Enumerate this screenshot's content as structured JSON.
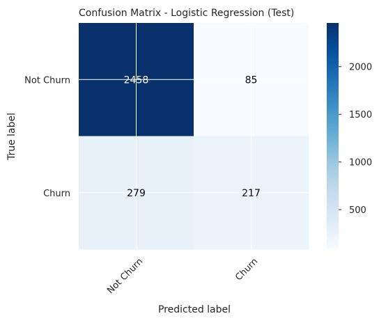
{
  "chart_data": {
    "type": "heatmap",
    "title": "Confusion Matrix - Logistic Regression (Test)",
    "xlabel": "Predicted label",
    "ylabel": "True label",
    "x_categories": [
      "Not Churn",
      "Churn"
    ],
    "y_categories": [
      "Not Churn",
      "Churn"
    ],
    "values": [
      [
        2458,
        85
      ],
      [
        279,
        217
      ]
    ],
    "colormap": "Blues",
    "colorbar": {
      "range": [
        85,
        2458
      ],
      "ticks": [
        500,
        1000,
        1500,
        2000
      ]
    },
    "grid": true
  }
}
